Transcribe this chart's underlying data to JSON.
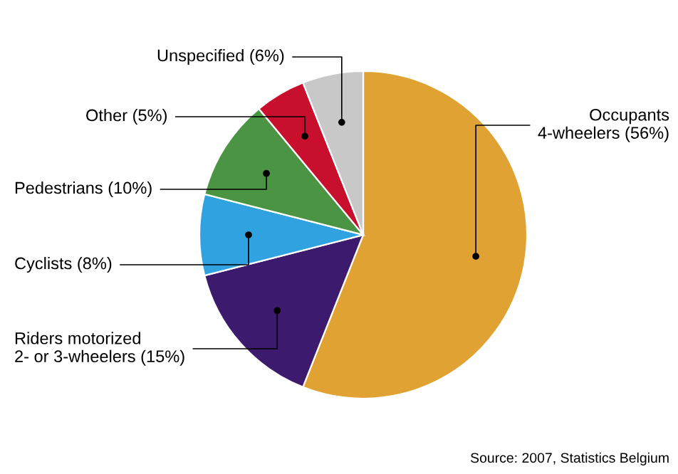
{
  "chart_data": {
    "type": "pie",
    "categories": [
      "Occupants\n4-wheelers",
      "Riders motorized\n2- or 3-wheelers",
      "Cyclists",
      "Pedestrians",
      "Other",
      "Unspecified"
    ],
    "values": [
      56,
      15,
      8,
      10,
      5,
      6
    ],
    "value_labels": [
      "(56%)",
      "(15%)",
      "(8%)",
      "(10%)",
      "(5%)",
      "(6%)"
    ],
    "colors": [
      "#e0a232",
      "#3c1a6e",
      "#30a2e0",
      "#4a9444",
      "#c8102e",
      "#c8c8c8"
    ],
    "annotations": [
      "Source: 2007, Statistics Belgium"
    ]
  }
}
